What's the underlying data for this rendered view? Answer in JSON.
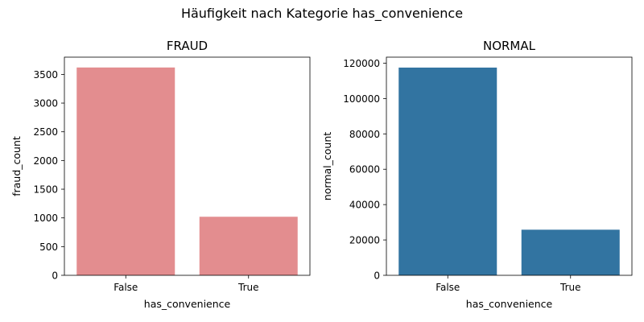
{
  "figure": {
    "suptitle": "Häufigkeit nach Kategorie has_convenience"
  },
  "chart_data": [
    {
      "type": "bar",
      "title": "FRAUD",
      "xlabel": "has_convenience",
      "ylabel": "fraud_count",
      "categories": [
        "False",
        "True"
      ],
      "values": [
        3620,
        1020
      ],
      "ylim": [
        0,
        3800
      ],
      "yticks": [
        0,
        500,
        1000,
        1500,
        2000,
        2500,
        3000,
        3500
      ],
      "color": "#e38d8f",
      "grid": false,
      "legend": "none"
    },
    {
      "type": "bar",
      "title": "NORMAL",
      "xlabel": "has_convenience",
      "ylabel": "normal_count",
      "categories": [
        "False",
        "True"
      ],
      "values": [
        117500,
        25800
      ],
      "ylim": [
        0,
        123400
      ],
      "yticks": [
        0,
        20000,
        40000,
        60000,
        80000,
        100000,
        120000
      ],
      "color": "#3274a1",
      "grid": false,
      "legend": "none"
    }
  ]
}
